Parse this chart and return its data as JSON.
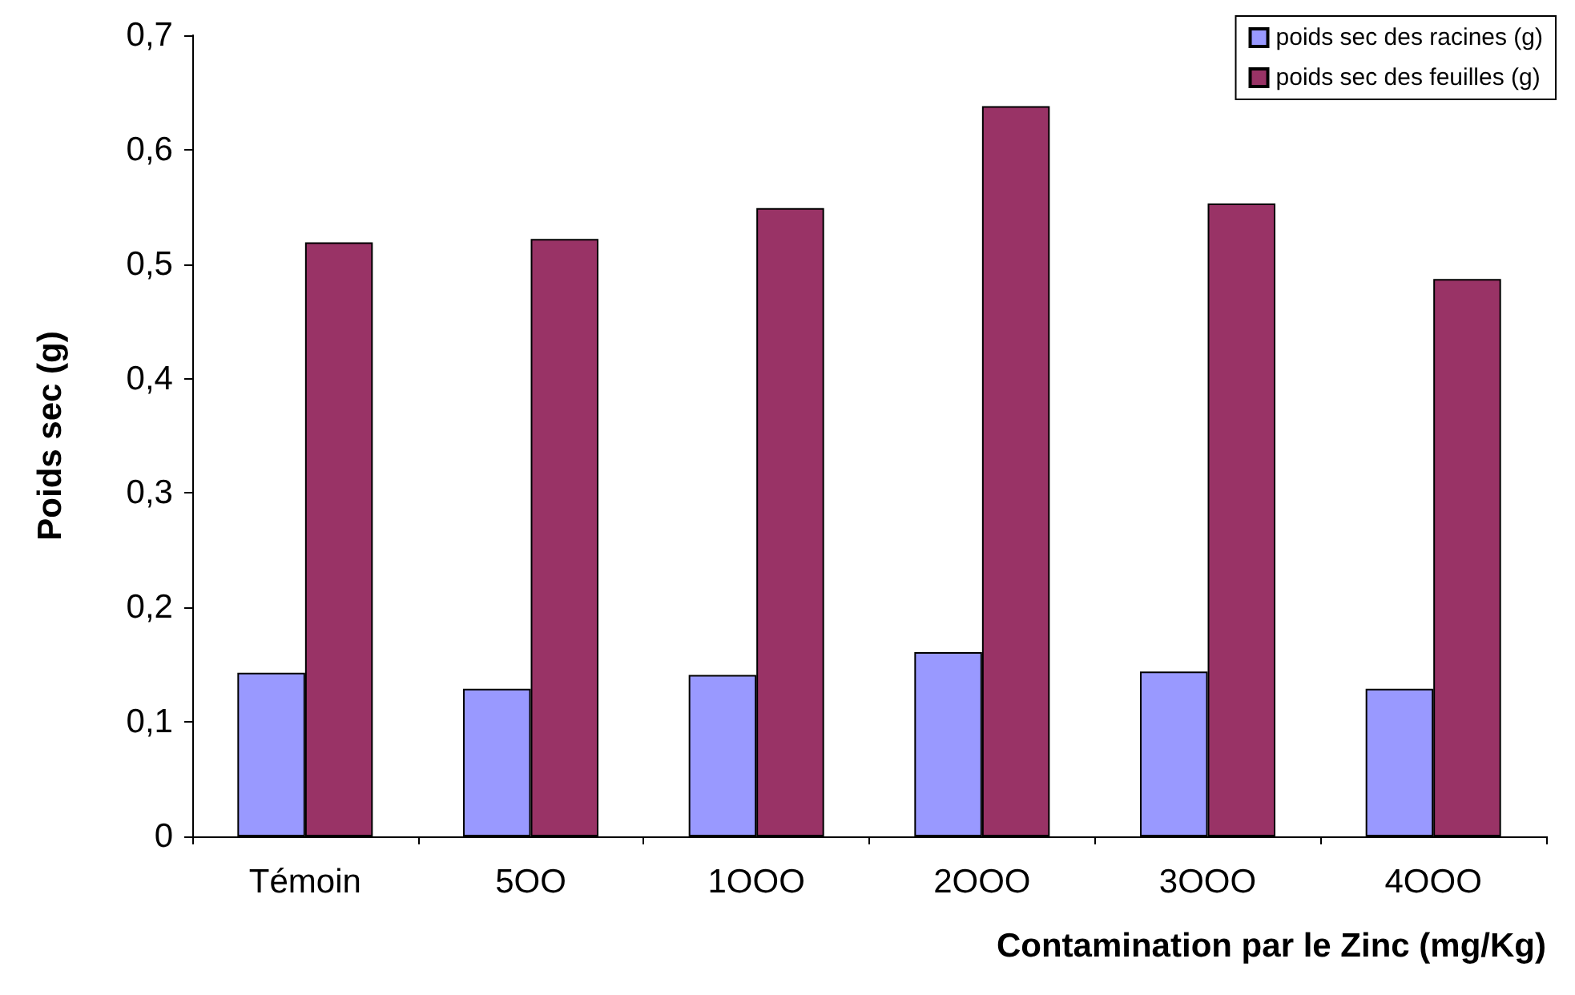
{
  "chart_data": {
    "type": "bar",
    "xlabel": "Contamination par le Zinc (mg/Kg)",
    "ylabel": "Poids sec (g)",
    "categories": [
      "Témoin",
      "5OO",
      "1OOO",
      "2OOO",
      "3OOO",
      "4OOO"
    ],
    "series": [
      {
        "name": "poids sec des racines (g)",
        "color": "#9999ff",
        "values": [
          0.143,
          0.129,
          0.141,
          0.161,
          0.144,
          0.129
        ]
      },
      {
        "name": "poids sec des feuilles (g)",
        "color": "#993366",
        "values": [
          0.519,
          0.522,
          0.549,
          0.638,
          0.553,
          0.487
        ]
      }
    ],
    "ylim": [
      0,
      0.7
    ],
    "yticks": [
      {
        "value": 0,
        "label": "0"
      },
      {
        "value": 0.1,
        "label": "0,1"
      },
      {
        "value": 0.2,
        "label": "0,2"
      },
      {
        "value": 0.3,
        "label": "0,3"
      },
      {
        "value": 0.4,
        "label": "0,4"
      },
      {
        "value": 0.5,
        "label": "0,5"
      },
      {
        "value": 0.6,
        "label": "0,6"
      },
      {
        "value": 0.7,
        "label": "0,7"
      }
    ],
    "grid": false,
    "legend": "top right"
  }
}
